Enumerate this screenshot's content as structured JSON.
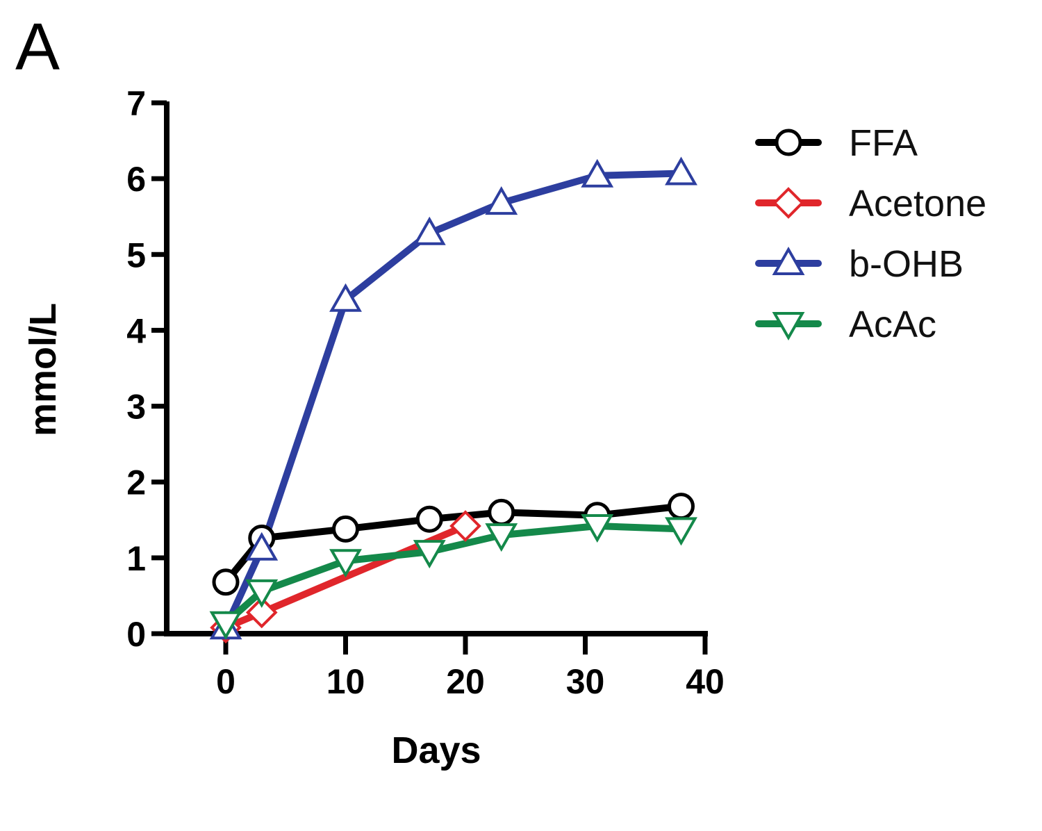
{
  "panel_label": "A",
  "chart_data": {
    "type": "line",
    "xlabel": "Days",
    "ylabel": "mmol/L",
    "xlim": [
      -5,
      40
    ],
    "ylim": [
      0,
      7
    ],
    "xticks": [
      "0",
      "10",
      "20",
      "30",
      "40"
    ],
    "yticks": [
      "0",
      "1",
      "2",
      "3",
      "4",
      "5",
      "6",
      "7"
    ],
    "legend_position": "top-right",
    "grid": false,
    "series": [
      {
        "name": "FFA",
        "color": "#000000",
        "marker": "circle",
        "x": [
          0,
          3,
          10,
          17,
          23,
          31,
          38
        ],
        "y": [
          0.68,
          1.26,
          1.38,
          1.51,
          1.6,
          1.56,
          1.68
        ]
      },
      {
        "name": "Acetone",
        "color": "#e0262b",
        "marker": "diamond",
        "x": [
          0,
          3,
          20
        ],
        "y": [
          0.08,
          0.28,
          1.42
        ]
      },
      {
        "name": "b-OHB",
        "color": "#2d3e9f",
        "marker": "triangle-up",
        "x": [
          0,
          3,
          10,
          17,
          23,
          31,
          38
        ],
        "y": [
          0.08,
          1.12,
          4.4,
          5.28,
          5.68,
          6.04,
          6.07
        ]
      },
      {
        "name": "AcAc",
        "color": "#14894a",
        "marker": "triangle-down",
        "x": [
          0,
          3,
          10,
          17,
          23,
          31,
          38
        ],
        "y": [
          0.14,
          0.56,
          0.96,
          1.08,
          1.3,
          1.42,
          1.38
        ]
      }
    ]
  }
}
